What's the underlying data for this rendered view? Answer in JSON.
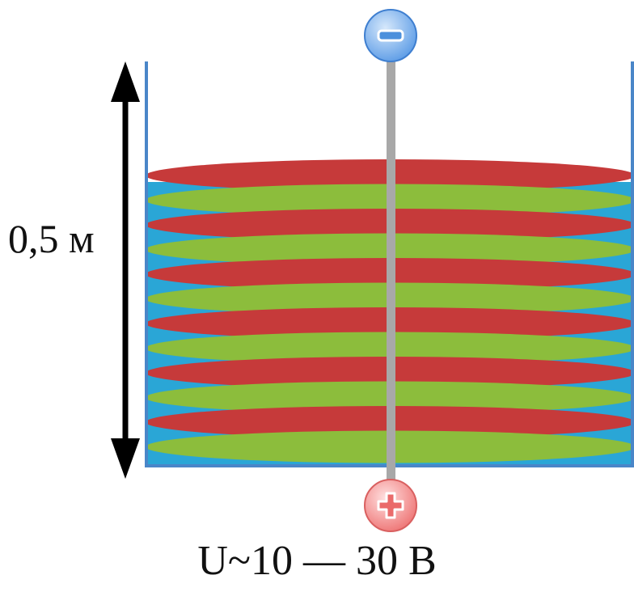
{
  "diagram": {
    "height_label": "0,5 м",
    "voltage_label": "U~10 — 30 В",
    "electrode_top": {
      "sign": "minus-icon",
      "color": "#6aa6ea"
    },
    "electrode_bottom": {
      "sign": "plus-icon",
      "color": "#f08080"
    },
    "layers": [
      "red",
      "green",
      "red",
      "green",
      "red",
      "green",
      "red",
      "green",
      "red",
      "green",
      "red",
      "green"
    ],
    "colors": {
      "red": "#c63a3a",
      "green": "#8cbd3c",
      "water": "#2aa6d6",
      "tank_wall": "#4a86c8",
      "rod": "#a8a8a8",
      "arrow": "#000000"
    }
  }
}
